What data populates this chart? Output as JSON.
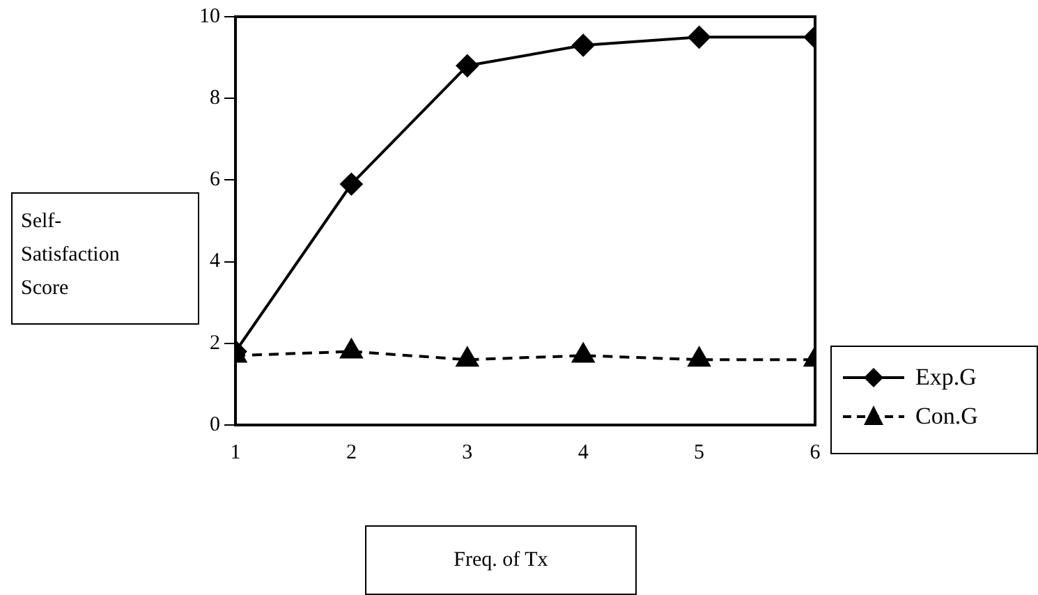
{
  "chart_data": {
    "type": "line",
    "xlabel": "Freq. of Tx",
    "ylabel": "Self-\nSatisfaction\nScore",
    "x": [
      1,
      2,
      3,
      4,
      5,
      6
    ],
    "xlim": [
      1,
      6
    ],
    "xticks": [
      1,
      2,
      3,
      4,
      5,
      6
    ],
    "ylim": [
      0,
      10
    ],
    "yticks": [
      0,
      2,
      4,
      6,
      8,
      10
    ],
    "grid": false,
    "legend": "bottom right",
    "series": [
      {
        "name": "Exp.G",
        "color": "#000000",
        "marker": "diamond",
        "line_style": "solid",
        "values": [
          1.8,
          5.9,
          8.8,
          9.3,
          9.5,
          9.5
        ]
      },
      {
        "name": "Con.G",
        "color": "#000000",
        "marker": "triangle",
        "line_style": "dashed",
        "values": [
          1.7,
          1.8,
          1.6,
          1.7,
          1.6,
          1.6
        ]
      }
    ]
  }
}
